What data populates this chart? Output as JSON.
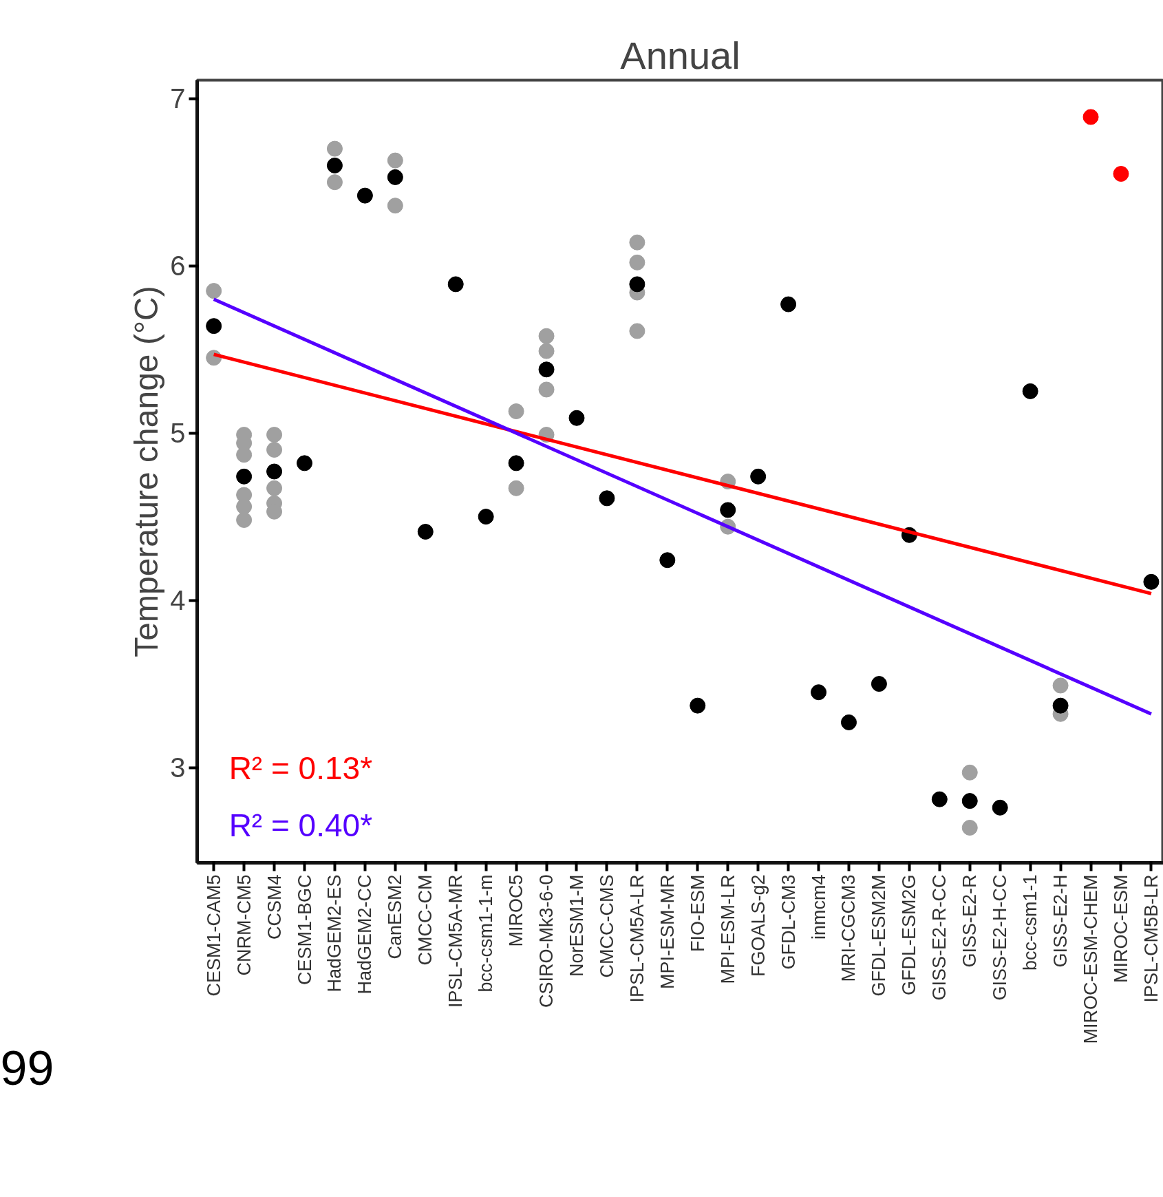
{
  "chart_data": {
    "type": "scatter",
    "title": "Annual",
    "ylabel": "Temperature change (°C)",
    "categories": [
      "CESM1-CAM5",
      "CNRM-CM5",
      "CCSM4",
      "CESM1-BGC",
      "HadGEM2-ES",
      "HadGEM2-CC",
      "CanESM2",
      "CMCC-CM",
      "IPSL-CM5A-MR",
      "bcc-csm1-1-m",
      "MIROC5",
      "CSIRO-Mk3-6-0",
      "NorESM1-M",
      "CMCC-CMS",
      "IPSL-CM5A-LR",
      "MPI-ESM-MR",
      "FIO-ESM",
      "MPI-ESM-LR",
      "FGOALS-g2",
      "GFDL-CM3",
      "inmcm4",
      "MRI-CGCM3",
      "GFDL-ESM2M",
      "GFDL-ESM2G",
      "GISS-E2-R-CC",
      "GISS-E2-R",
      "GISS-E2-H-CC",
      "bcc-csm1-1",
      "GISS-E2-H",
      "MIROC-ESM-CHEM",
      "MIROC-ESM",
      "IPSL-CM5B-LR"
    ],
    "ylim": [
      2.43,
      7.11
    ],
    "yticks": [
      3,
      4,
      5,
      6,
      7
    ],
    "grid": false,
    "marker": "circle",
    "series": [
      {
        "color": "#a0a0a0",
        "x": [
          "CESM1-CAM5",
          "CESM1-CAM5",
          "CNRM-CM5",
          "CNRM-CM5",
          "CNRM-CM5",
          "CNRM-CM5",
          "CNRM-CM5",
          "CNRM-CM5",
          "CCSM4",
          "CCSM4",
          "CCSM4",
          "CCSM4",
          "CCSM4",
          "HadGEM2-ES",
          "HadGEM2-ES",
          "CanESM2",
          "CanESM2",
          "MIROC5",
          "MIROC5",
          "CSIRO-Mk3-6-0",
          "CSIRO-Mk3-6-0",
          "CSIRO-Mk3-6-0",
          "CSIRO-Mk3-6-0",
          "IPSL-CM5A-LR",
          "IPSL-CM5A-LR",
          "IPSL-CM5A-LR",
          "IPSL-CM5A-LR",
          "MPI-ESM-LR",
          "MPI-ESM-LR",
          "GISS-E2-R",
          "GISS-E2-R",
          "GISS-E2-H",
          "GISS-E2-H"
        ],
        "values": [
          5.85,
          5.45,
          4.99,
          4.94,
          4.87,
          4.63,
          4.56,
          4.48,
          4.99,
          4.9,
          4.67,
          4.58,
          4.53,
          6.7,
          6.5,
          6.63,
          6.36,
          5.13,
          4.67,
          5.58,
          5.49,
          5.26,
          4.99,
          6.14,
          6.02,
          5.84,
          5.61,
          4.71,
          4.44,
          2.97,
          2.64,
          3.49,
          3.32
        ]
      },
      {
        "color": "#000000",
        "values": [
          5.64,
          4.74,
          4.77,
          4.82,
          6.6,
          6.42,
          6.53,
          4.41,
          5.89,
          4.5,
          4.82,
          5.38,
          5.09,
          4.61,
          5.89,
          4.24,
          3.37,
          4.54,
          4.74,
          5.77,
          3.45,
          3.27,
          3.5,
          4.39,
          2.81,
          2.8,
          2.76,
          5.25,
          3.37,
          null,
          null,
          4.11
        ]
      },
      {
        "color": "#ff0000",
        "values": [
          null,
          null,
          null,
          null,
          null,
          null,
          null,
          null,
          null,
          null,
          null,
          null,
          null,
          null,
          null,
          null,
          null,
          null,
          null,
          null,
          null,
          null,
          null,
          null,
          null,
          null,
          null,
          null,
          null,
          6.89,
          6.55,
          null
        ]
      },
      {
        "type": "line",
        "marker": "none",
        "color": "#ff0000",
        "x": [
          "CESM1-CAM5",
          "IPSL-CM5B-LR"
        ],
        "values": [
          5.47,
          4.04
        ]
      },
      {
        "type": "line",
        "marker": "none",
        "color": "#5500ff",
        "x": [
          "CESM1-CAM5",
          "IPSL-CM5B-LR"
        ],
        "values": [
          5.8,
          3.32
        ]
      }
    ],
    "annotations": [
      "R² = 0.13*",
      "R² = 0.40*",
      "99"
    ]
  }
}
